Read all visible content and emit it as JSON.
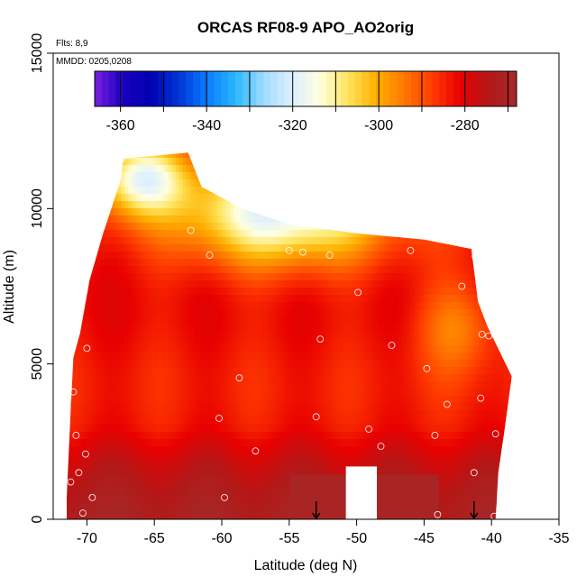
{
  "chart_data": {
    "type": "heatmap",
    "title": "ORCAS RF08-9 APO_AO2orig",
    "xlabel": "Latitude (deg N)",
    "ylabel": "Altitude (m)",
    "xlim": [
      -72.5,
      -35
    ],
    "ylim": [
      0,
      15000
    ],
    "x_ticks": [
      -70,
      -65,
      -60,
      -55,
      -50,
      -45,
      -40,
      -35
    ],
    "y_ticks": [
      0,
      5000,
      10000,
      15000
    ],
    "annotations": {
      "flights": "Flts: 8,9",
      "mmdd": "MMDD: 0205,0208"
    },
    "colorbar": {
      "range": [
        -366,
        -268
      ],
      "ticks": [
        -360,
        -340,
        -320,
        -300,
        -280
      ],
      "colors": [
        "#7a1fe0",
        "#1a00bf",
        "#0000b0",
        "#0036d6",
        "#0a7cff",
        "#29b7ff",
        "#9fdcff",
        "#dcefff",
        "#ffffe0",
        "#ffe45c",
        "#ffb000",
        "#ff7800",
        "#ff3b00",
        "#e80000",
        "#b31818",
        "#a52a2a"
      ]
    },
    "outline_top": [
      [
        -71.0,
        5200
      ],
      [
        -70.5,
        6000
      ],
      [
        -69.8,
        7700
      ],
      [
        -68.8,
        9200
      ],
      [
        -67.5,
        10900
      ],
      [
        -67.3,
        11600
      ],
      [
        -65.0,
        11700
      ],
      [
        -62.5,
        11800
      ],
      [
        -61.5,
        10700
      ],
      [
        -58.5,
        10000
      ],
      [
        -55.0,
        9500
      ],
      [
        -50.0,
        9200
      ],
      [
        -45.0,
        9000
      ],
      [
        -41.5,
        8700
      ],
      [
        -41.0,
        7000
      ],
      [
        -40.3,
        6200
      ],
      [
        -38.5,
        4600
      ],
      [
        -39.0,
        3000
      ],
      [
        -39.5,
        1500
      ],
      [
        -39.7,
        0
      ]
    ],
    "plume_center": [
      -55.5,
      9900
    ],
    "gap": {
      "lat": [
        -50.8,
        -48.5
      ],
      "alt_top": 1700
    },
    "samples": [
      [
        -70.3,
        200
      ],
      [
        -69.6,
        700
      ],
      [
        -71.2,
        1200
      ],
      [
        -70.6,
        1500
      ],
      [
        -70.1,
        2100
      ],
      [
        -70.8,
        2700
      ],
      [
        -71.0,
        4100
      ],
      [
        -70.0,
        5500
      ],
      [
        -67.4,
        11600
      ],
      [
        -60.9,
        8500
      ],
      [
        -62.3,
        9300
      ],
      [
        -55.0,
        8650
      ],
      [
        -54.0,
        8600
      ],
      [
        -52.0,
        8500
      ],
      [
        -46.0,
        8650
      ],
      [
        -41.2,
        8450
      ],
      [
        -42.2,
        7500
      ],
      [
        -49.9,
        7300
      ],
      [
        -40.7,
        5950
      ],
      [
        -40.2,
        5900
      ],
      [
        -52.7,
        5800
      ],
      [
        -47.4,
        5600
      ],
      [
        -44.8,
        4850
      ],
      [
        -58.7,
        4550
      ],
      [
        -40.8,
        3900
      ],
      [
        -43.3,
        3700
      ],
      [
        -60.2,
        3250
      ],
      [
        -53.0,
        3300
      ],
      [
        -49.1,
        2900
      ],
      [
        -44.2,
        2700
      ],
      [
        -39.7,
        2750
      ],
      [
        -57.5,
        2200
      ],
      [
        -48.2,
        2350
      ],
      [
        -41.3,
        1500
      ],
      [
        -59.8,
        700
      ],
      [
        -44.0,
        150
      ],
      [
        -39.8,
        100
      ]
    ],
    "arrows_lat": [
      -53.0,
      -41.3
    ]
  }
}
